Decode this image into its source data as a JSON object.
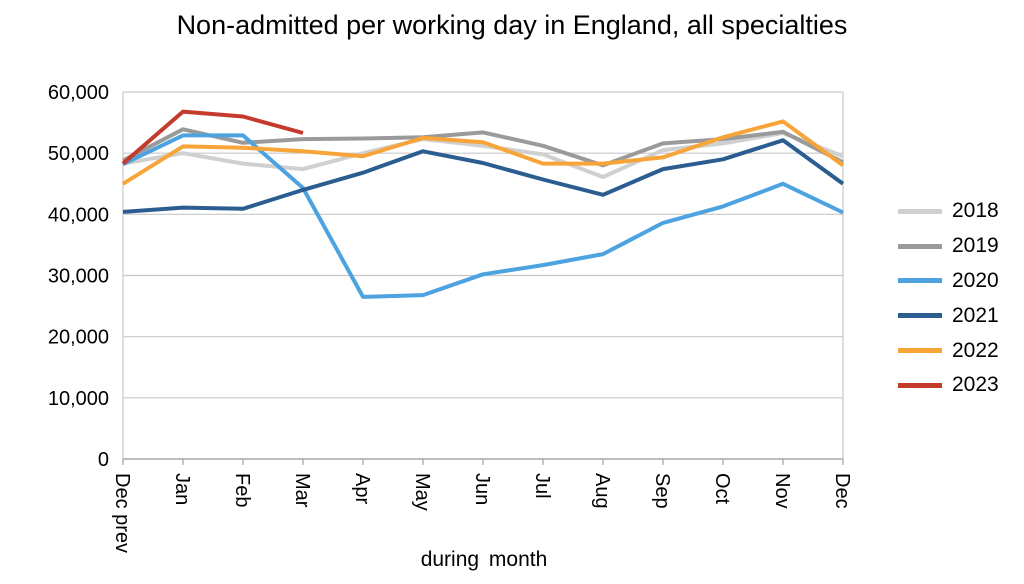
{
  "chart_data": {
    "type": "line",
    "title": "Non-admitted per working day in England, all specialties",
    "xlabel": "during  month",
    "ylabel": "",
    "ylim": [
      0,
      60000
    ],
    "yticks": [
      "0",
      "10,000",
      "20,000",
      "30,000",
      "40,000",
      "50,000",
      "60,000"
    ],
    "categories": [
      "Dec prev",
      "Jan",
      "Feb",
      "Mar",
      "Apr",
      "May",
      "Jun",
      "Jul",
      "Aug",
      "Sep",
      "Oct",
      "Nov",
      "Dec"
    ],
    "grid": true,
    "legend_position": "right",
    "series": [
      {
        "name": "2018",
        "color": "#d0d0d0",
        "values": [
          48300,
          50000,
          48300,
          47400,
          50000,
          52300,
          51200,
          49800,
          46100,
          50500,
          51600,
          53300,
          49500
        ]
      },
      {
        "name": "2019",
        "color": "#9a9a9a",
        "values": [
          48800,
          53900,
          51700,
          52300,
          52400,
          52600,
          53400,
          51200,
          48000,
          51600,
          52300,
          53500,
          48500
        ]
      },
      {
        "name": "2020",
        "color": "#4da3e0",
        "values": [
          48200,
          52900,
          52900,
          44300,
          26500,
          26800,
          30200,
          31700,
          33500,
          38600,
          41300,
          45000,
          40300
        ]
      },
      {
        "name": "2021",
        "color": "#2b5d91",
        "values": [
          40400,
          41100,
          40900,
          44000,
          46800,
          50300,
          48400,
          45700,
          43200,
          47400,
          49000,
          52100,
          45000
        ]
      },
      {
        "name": "2022",
        "color": "#f7a538",
        "values": [
          45000,
          51100,
          50900,
          50300,
          49500,
          52500,
          51800,
          48300,
          48300,
          49300,
          52600,
          55200,
          48000
        ]
      },
      {
        "name": "2023",
        "color": "#c43a2c",
        "values": [
          48300,
          56800,
          56000,
          53300,
          null,
          null,
          null,
          null,
          null,
          null,
          null,
          null,
          null
        ]
      }
    ]
  }
}
